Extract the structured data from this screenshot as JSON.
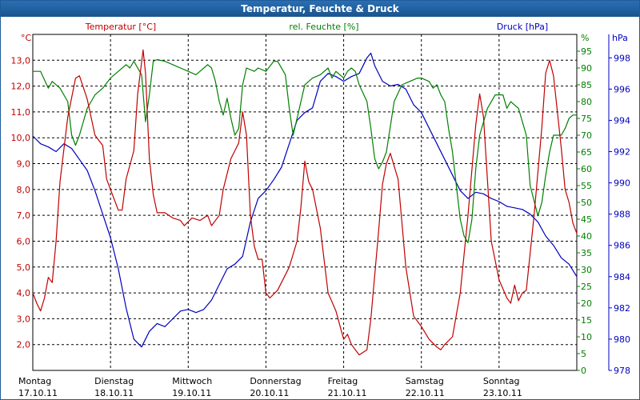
{
  "window": {
    "title": "Temperatur, Feuchte & Druck"
  },
  "chart_data": {
    "type": "line",
    "title": "Temperatur, Feuchte & Druck",
    "x_unit": "days",
    "x_range": [
      0,
      7
    ],
    "day_labels": [
      {
        "day": "Montag",
        "date": "17.10.11"
      },
      {
        "day": "Dienstag",
        "date": "18.10.11"
      },
      {
        "day": "Mittwoch",
        "date": "19.10.11"
      },
      {
        "day": "Donnerstag",
        "date": "20.10.11"
      },
      {
        "day": "Freitag",
        "date": "21.10.11"
      },
      {
        "day": "Samstag",
        "date": "22.10.11"
      },
      {
        "day": "Sonntag",
        "date": "23.10.11"
      }
    ],
    "grid": true,
    "axes": {
      "temperature": {
        "unit_label": "°C",
        "range": [
          1.0,
          14.0
        ],
        "ticks": [
          "13,0",
          "12,0",
          "11,0",
          "10,0",
          "9,0",
          "8,0",
          "7,0",
          "6,0",
          "5,0",
          "4,0",
          "3,0",
          "2,0"
        ],
        "tick_values": [
          13,
          12,
          11,
          10,
          9,
          8,
          7,
          6,
          5,
          4,
          3,
          2
        ],
        "color": "#c00000"
      },
      "humidity": {
        "unit_label": "%",
        "range": [
          0,
          100
        ],
        "ticks": [
          "95",
          "90",
          "85",
          "80",
          "75",
          "70",
          "65",
          "60",
          "55",
          "50",
          "45",
          "40",
          "35",
          "30",
          "25",
          "20",
          "15",
          "10",
          "5",
          "0"
        ],
        "tick_values": [
          95,
          90,
          85,
          80,
          75,
          70,
          65,
          60,
          55,
          50,
          45,
          40,
          35,
          30,
          25,
          20,
          15,
          10,
          5,
          0
        ],
        "color": "#008000"
      },
      "pressure": {
        "unit_label": "hPa",
        "range": [
          978,
          999.5
        ],
        "ticks": [
          "998",
          "996",
          "994",
          "992",
          "990",
          "988",
          "986",
          "984",
          "982",
          "980",
          "978"
        ],
        "tick_values": [
          998,
          996,
          994,
          992,
          990,
          988,
          986,
          984,
          982,
          980,
          978
        ],
        "color": "#0000c0"
      }
    },
    "series": [
      {
        "name": "Temperatur [°C]",
        "axis": "temperature",
        "color": "#c00000",
        "points": [
          [
            0.0,
            4.0
          ],
          [
            0.05,
            3.6
          ],
          [
            0.1,
            3.3
          ],
          [
            0.15,
            3.8
          ],
          [
            0.2,
            4.6
          ],
          [
            0.25,
            4.4
          ],
          [
            0.3,
            6.0
          ],
          [
            0.35,
            8.3
          ],
          [
            0.45,
            10.8
          ],
          [
            0.55,
            12.3
          ],
          [
            0.6,
            12.4
          ],
          [
            0.7,
            11.5
          ],
          [
            0.8,
            10.1
          ],
          [
            0.9,
            9.7
          ],
          [
            0.95,
            8.4
          ],
          [
            1.0,
            8.0
          ],
          [
            1.1,
            7.2
          ],
          [
            1.15,
            7.2
          ],
          [
            1.2,
            8.4
          ],
          [
            1.3,
            9.5
          ],
          [
            1.35,
            11.7
          ],
          [
            1.42,
            13.4
          ],
          [
            1.45,
            12.5
          ],
          [
            1.5,
            9.2
          ],
          [
            1.55,
            7.8
          ],
          [
            1.6,
            7.1
          ],
          [
            1.7,
            7.1
          ],
          [
            1.8,
            6.9
          ],
          [
            1.9,
            6.8
          ],
          [
            1.95,
            6.6
          ],
          [
            2.05,
            6.9
          ],
          [
            2.15,
            6.8
          ],
          [
            2.25,
            7.0
          ],
          [
            2.3,
            6.6
          ],
          [
            2.4,
            7.0
          ],
          [
            2.45,
            8.0
          ],
          [
            2.55,
            9.2
          ],
          [
            2.6,
            9.5
          ],
          [
            2.65,
            9.8
          ],
          [
            2.7,
            11.0
          ],
          [
            2.75,
            10.1
          ],
          [
            2.8,
            7.0
          ],
          [
            2.85,
            5.8
          ],
          [
            2.9,
            5.3
          ],
          [
            2.95,
            5.3
          ],
          [
            3.0,
            4.0
          ],
          [
            3.05,
            3.8
          ],
          [
            3.15,
            4.1
          ],
          [
            3.3,
            5.0
          ],
          [
            3.4,
            6.0
          ],
          [
            3.45,
            7.3
          ],
          [
            3.5,
            9.1
          ],
          [
            3.55,
            8.3
          ],
          [
            3.6,
            8.0
          ],
          [
            3.7,
            6.5
          ],
          [
            3.8,
            4.0
          ],
          [
            3.9,
            3.3
          ],
          [
            4.0,
            2.2
          ],
          [
            4.05,
            2.4
          ],
          [
            4.1,
            2.0
          ],
          [
            4.2,
            1.6
          ],
          [
            4.3,
            1.8
          ],
          [
            4.35,
            3.0
          ],
          [
            4.45,
            6.4
          ],
          [
            4.5,
            8.2
          ],
          [
            4.55,
            9.0
          ],
          [
            4.6,
            9.4
          ],
          [
            4.7,
            8.4
          ],
          [
            4.8,
            5.0
          ],
          [
            4.9,
            3.1
          ],
          [
            5.0,
            2.7
          ],
          [
            5.1,
            2.2
          ],
          [
            5.2,
            1.9
          ],
          [
            5.25,
            1.8
          ],
          [
            5.3,
            2.0
          ],
          [
            5.4,
            2.3
          ],
          [
            5.5,
            4.0
          ],
          [
            5.6,
            7.0
          ],
          [
            5.7,
            10.5
          ],
          [
            5.75,
            11.7
          ],
          [
            5.8,
            10.8
          ],
          [
            5.9,
            6.0
          ],
          [
            6.0,
            4.5
          ],
          [
            6.1,
            3.8
          ],
          [
            6.15,
            3.6
          ],
          [
            6.2,
            4.3
          ],
          [
            6.25,
            3.7
          ],
          [
            6.3,
            4.0
          ],
          [
            6.35,
            4.1
          ],
          [
            6.45,
            7.0
          ],
          [
            6.55,
            10.4
          ],
          [
            6.6,
            12.5
          ],
          [
            6.65,
            13.0
          ],
          [
            6.7,
            12.4
          ],
          [
            6.8,
            9.6
          ],
          [
            6.85,
            8.0
          ],
          [
            6.9,
            7.5
          ],
          [
            6.95,
            6.7
          ],
          [
            7.0,
            6.3
          ]
        ]
      },
      {
        "name": "rel. Feuchte [%]",
        "axis": "humidity",
        "color": "#008000",
        "points": [
          [
            0.0,
            89
          ],
          [
            0.1,
            89
          ],
          [
            0.2,
            84
          ],
          [
            0.25,
            86
          ],
          [
            0.35,
            84
          ],
          [
            0.45,
            80
          ],
          [
            0.5,
            70
          ],
          [
            0.55,
            67
          ],
          [
            0.6,
            70
          ],
          [
            0.7,
            78
          ],
          [
            0.75,
            80
          ],
          [
            0.8,
            82
          ],
          [
            0.9,
            84
          ],
          [
            1.0,
            87
          ],
          [
            1.1,
            89
          ],
          [
            1.2,
            91
          ],
          [
            1.25,
            90
          ],
          [
            1.3,
            92
          ],
          [
            1.4,
            88
          ],
          [
            1.45,
            74
          ],
          [
            1.5,
            82
          ],
          [
            1.55,
            92
          ],
          [
            1.6,
            92.5
          ],
          [
            1.7,
            92
          ],
          [
            1.8,
            91
          ],
          [
            1.9,
            90
          ],
          [
            2.0,
            89
          ],
          [
            2.1,
            88
          ],
          [
            2.15,
            89
          ],
          [
            2.25,
            91
          ],
          [
            2.3,
            90
          ],
          [
            2.35,
            86
          ],
          [
            2.4,
            80
          ],
          [
            2.45,
            76
          ],
          [
            2.5,
            81
          ],
          [
            2.55,
            75
          ],
          [
            2.6,
            70
          ],
          [
            2.65,
            72
          ],
          [
            2.7,
            85
          ],
          [
            2.75,
            90
          ],
          [
            2.85,
            89
          ],
          [
            2.9,
            90
          ],
          [
            3.0,
            89
          ],
          [
            3.1,
            92
          ],
          [
            3.15,
            92
          ],
          [
            3.25,
            88
          ],
          [
            3.3,
            78
          ],
          [
            3.35,
            70
          ],
          [
            3.4,
            75
          ],
          [
            3.5,
            85
          ],
          [
            3.6,
            87
          ],
          [
            3.7,
            88
          ],
          [
            3.8,
            90
          ],
          [
            3.85,
            87
          ],
          [
            3.9,
            89
          ],
          [
            4.0,
            87
          ],
          [
            4.05,
            89
          ],
          [
            4.1,
            90
          ],
          [
            4.15,
            89
          ],
          [
            4.2,
            85
          ],
          [
            4.3,
            80
          ],
          [
            4.35,
            72
          ],
          [
            4.4,
            63
          ],
          [
            4.45,
            60
          ],
          [
            4.5,
            62
          ],
          [
            4.55,
            65
          ],
          [
            4.65,
            80
          ],
          [
            4.75,
            85
          ],
          [
            4.85,
            86
          ],
          [
            4.95,
            87
          ],
          [
            5.0,
            87
          ],
          [
            5.1,
            86
          ],
          [
            5.15,
            84
          ],
          [
            5.2,
            85
          ],
          [
            5.25,
            82
          ],
          [
            5.3,
            80
          ],
          [
            5.35,
            72
          ],
          [
            5.4,
            65
          ],
          [
            5.45,
            55
          ],
          [
            5.5,
            45
          ],
          [
            5.55,
            40
          ],
          [
            5.6,
            38
          ],
          [
            5.65,
            45
          ],
          [
            5.7,
            60
          ],
          [
            5.75,
            70
          ],
          [
            5.85,
            78
          ],
          [
            5.95,
            82
          ],
          [
            6.05,
            82
          ],
          [
            6.1,
            78
          ],
          [
            6.15,
            80
          ],
          [
            6.25,
            78
          ],
          [
            6.35,
            70
          ],
          [
            6.4,
            55
          ],
          [
            6.5,
            46
          ],
          [
            6.55,
            50
          ],
          [
            6.6,
            58
          ],
          [
            6.65,
            65
          ],
          [
            6.7,
            70
          ],
          [
            6.8,
            70
          ],
          [
            6.85,
            72
          ],
          [
            6.9,
            75
          ],
          [
            6.95,
            76
          ],
          [
            7.0,
            76
          ]
        ]
      },
      {
        "name": "Druck [hPa]",
        "axis": "pressure",
        "color": "#0000c0",
        "points": [
          [
            0.0,
            993.0
          ],
          [
            0.1,
            992.5
          ],
          [
            0.2,
            992.3
          ],
          [
            0.3,
            992.0
          ],
          [
            0.4,
            992.5
          ],
          [
            0.5,
            992.2
          ],
          [
            0.6,
            991.5
          ],
          [
            0.7,
            990.8
          ],
          [
            0.8,
            989.5
          ],
          [
            0.9,
            988.0
          ],
          [
            1.0,
            986.5
          ],
          [
            1.1,
            984.5
          ],
          [
            1.2,
            982.0
          ],
          [
            1.3,
            980.0
          ],
          [
            1.4,
            979.5
          ],
          [
            1.5,
            980.5
          ],
          [
            1.6,
            981.0
          ],
          [
            1.7,
            980.8
          ],
          [
            1.8,
            981.3
          ],
          [
            1.9,
            981.8
          ],
          [
            2.0,
            981.9
          ],
          [
            2.1,
            981.7
          ],
          [
            2.2,
            981.9
          ],
          [
            2.3,
            982.5
          ],
          [
            2.4,
            983.5
          ],
          [
            2.5,
            984.5
          ],
          [
            2.6,
            984.8
          ],
          [
            2.7,
            985.3
          ],
          [
            2.8,
            987.5
          ],
          [
            2.9,
            989.0
          ],
          [
            3.0,
            989.5
          ],
          [
            3.1,
            990.2
          ],
          [
            3.2,
            991.0
          ],
          [
            3.3,
            992.5
          ],
          [
            3.4,
            994.0
          ],
          [
            3.5,
            994.5
          ],
          [
            3.6,
            994.8
          ],
          [
            3.7,
            996.5
          ],
          [
            3.8,
            997.0
          ],
          [
            3.9,
            996.8
          ],
          [
            4.0,
            996.5
          ],
          [
            4.1,
            996.8
          ],
          [
            4.2,
            997.0
          ],
          [
            4.3,
            998.0
          ],
          [
            4.35,
            998.3
          ],
          [
            4.4,
            997.5
          ],
          [
            4.5,
            996.5
          ],
          [
            4.6,
            996.2
          ],
          [
            4.7,
            996.3
          ],
          [
            4.8,
            996.0
          ],
          [
            4.9,
            995.0
          ],
          [
            5.0,
            994.5
          ],
          [
            5.1,
            993.5
          ],
          [
            5.2,
            992.5
          ],
          [
            5.3,
            991.5
          ],
          [
            5.4,
            990.5
          ],
          [
            5.5,
            989.5
          ],
          [
            5.6,
            989.0
          ],
          [
            5.7,
            989.4
          ],
          [
            5.8,
            989.3
          ],
          [
            5.9,
            989.0
          ],
          [
            6.0,
            988.8
          ],
          [
            6.1,
            988.5
          ],
          [
            6.2,
            988.4
          ],
          [
            6.3,
            988.3
          ],
          [
            6.4,
            988.0
          ],
          [
            6.5,
            987.5
          ],
          [
            6.6,
            986.6
          ],
          [
            6.7,
            986.0
          ],
          [
            6.8,
            985.2
          ],
          [
            6.9,
            984.8
          ],
          [
            7.0,
            984.0
          ]
        ]
      }
    ]
  }
}
